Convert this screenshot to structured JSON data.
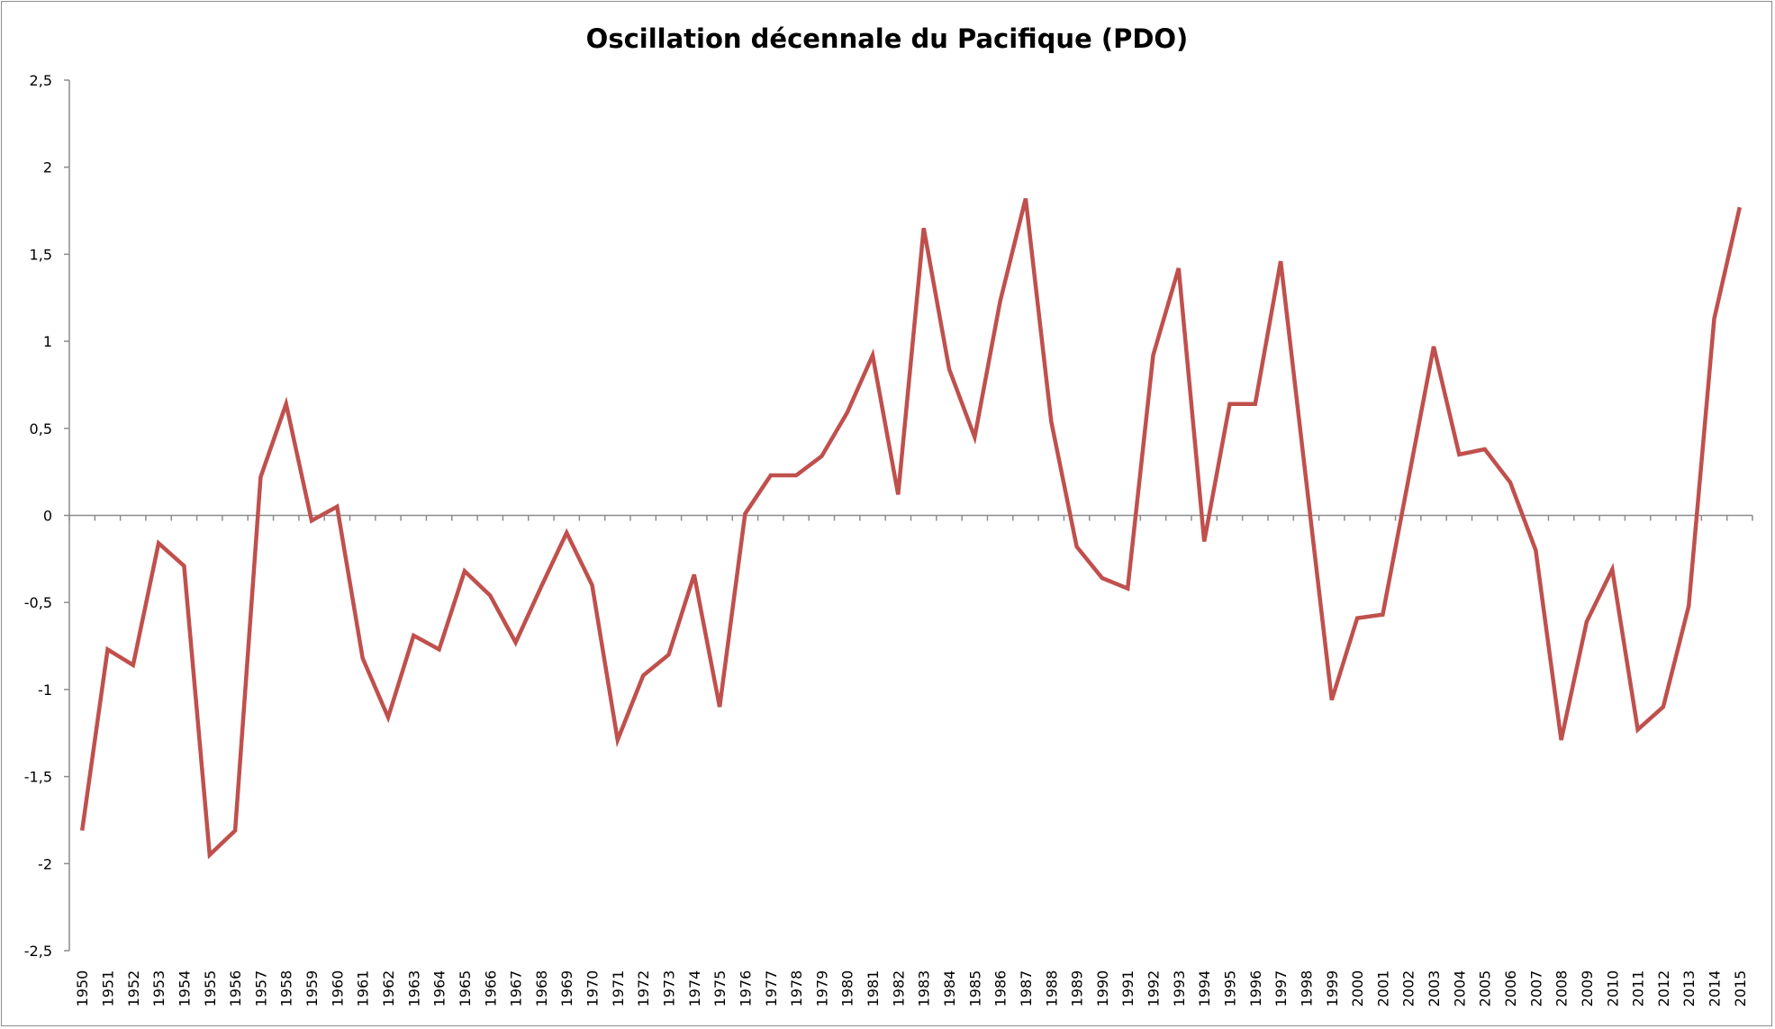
{
  "chart_data": {
    "type": "line",
    "title": "Oscillation décennale du Pacifique (PDO)",
    "xlabel": "",
    "ylabel": "",
    "ylim": [
      -2.5,
      2.5
    ],
    "yticks": [
      "-2,5",
      "-2",
      "-1,5",
      "-1",
      "-0,5",
      "0",
      "0,5",
      "1",
      "1,5",
      "2",
      "2,5"
    ],
    "ytick_values": [
      -2.5,
      -2,
      -1.5,
      -1,
      -0.5,
      0,
      0.5,
      1,
      1.5,
      2,
      2.5
    ],
    "grid": false,
    "legend": "none",
    "line_color": "#c0504d",
    "categories": [
      "1950",
      "1951",
      "1952",
      "1953",
      "1954",
      "1955",
      "1956",
      "1957",
      "1958",
      "1959",
      "1960",
      "1961",
      "1962",
      "1963",
      "1964",
      "1965",
      "1966",
      "1967",
      "1968",
      "1969",
      "1970",
      "1971",
      "1972",
      "1973",
      "1974",
      "1975",
      "1976",
      "1977",
      "1978",
      "1979",
      "1980",
      "1981",
      "1982",
      "1983",
      "1984",
      "1985",
      "1986",
      "1987",
      "1988",
      "1989",
      "1990",
      "1991",
      "1992",
      "1993",
      "1994",
      "1995",
      "1996",
      "1997",
      "1998",
      "1999",
      "2000",
      "2001",
      "2002",
      "2003",
      "2004",
      "2005",
      "2006",
      "2007",
      "2008",
      "2009",
      "2010",
      "2011",
      "2012",
      "2013",
      "2014",
      "2015"
    ],
    "values": [
      -1.81,
      -0.77,
      -0.86,
      -0.16,
      -0.29,
      -1.95,
      -1.81,
      0.22,
      0.64,
      -0.03,
      0.05,
      -0.82,
      -1.16,
      -0.69,
      -0.77,
      -0.32,
      -0.46,
      -0.73,
      -0.41,
      -0.1,
      -0.4,
      -1.29,
      -0.92,
      -0.8,
      -0.34,
      -1.1,
      0.01,
      0.23,
      0.23,
      0.34,
      0.59,
      0.92,
      0.12,
      1.65,
      0.84,
      0.45,
      1.23,
      1.82,
      0.54,
      -0.18,
      -0.36,
      -0.42,
      0.92,
      1.42,
      -0.15,
      0.64,
      0.64,
      1.46,
      0.2,
      -1.06,
      -0.59,
      -0.57,
      0.2,
      0.97,
      0.35,
      0.38,
      0.19,
      -0.2,
      -1.29,
      -0.61,
      -0.31,
      -1.23,
      -1.1,
      -0.52,
      1.13,
      1.77
    ]
  }
}
